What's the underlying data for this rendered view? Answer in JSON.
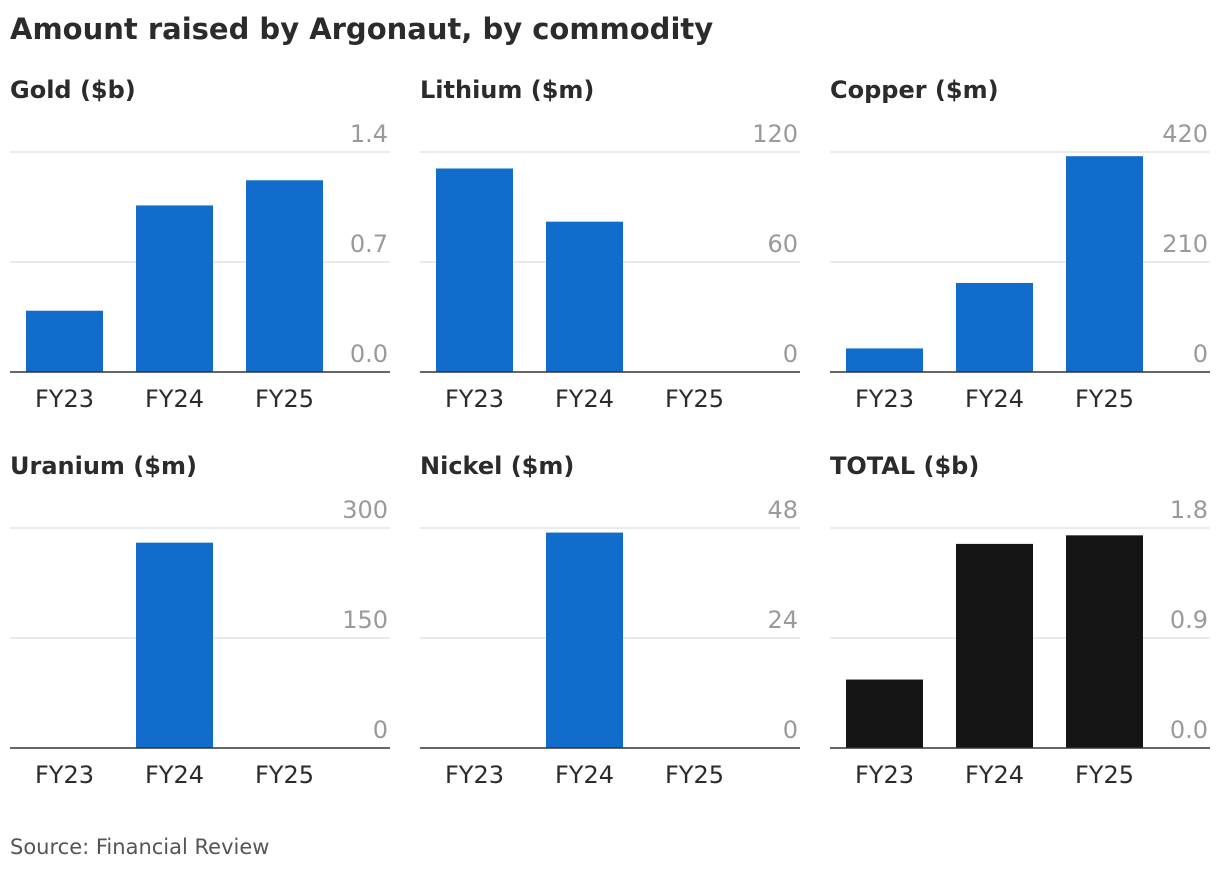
{
  "title": "Amount raised by Argonaut, by commodity",
  "source": "Source: Financial Review",
  "colors": {
    "bar": "#116ccc",
    "total_bar": "#141414",
    "grid": "#dddddd",
    "axis": "#333333",
    "tick_label": "#9a9a9a"
  },
  "chart_data": [
    {
      "type": "bar",
      "title": "Gold ($b)",
      "categories": [
        "FY23",
        "FY24",
        "FY25"
      ],
      "values": [
        0.39,
        1.06,
        1.22
      ],
      "ylim": [
        0,
        1.4
      ],
      "yticks": [
        0,
        0.7,
        1.4
      ],
      "ytick_labels": [
        "0.0",
        "0.7",
        "1.4"
      ],
      "grid": true
    },
    {
      "type": "bar",
      "title": "Lithium ($m)",
      "categories": [
        "FY23",
        "FY24",
        "FY25"
      ],
      "values": [
        111,
        82,
        0
      ],
      "ylim": [
        0,
        120
      ],
      "yticks": [
        0,
        60,
        120
      ],
      "ytick_labels": [
        "0",
        "60",
        "120"
      ],
      "grid": true
    },
    {
      "type": "bar",
      "title": "Copper ($m)",
      "categories": [
        "FY23",
        "FY24",
        "FY25"
      ],
      "values": [
        45,
        170,
        412
      ],
      "ylim": [
        0,
        420
      ],
      "yticks": [
        0,
        210,
        420
      ],
      "ytick_labels": [
        "0",
        "210",
        "420"
      ],
      "grid": true
    },
    {
      "type": "bar",
      "title": "Uranium ($m)",
      "categories": [
        "FY23",
        "FY24",
        "FY25"
      ],
      "values": [
        0,
        280,
        0
      ],
      "ylim": [
        0,
        300
      ],
      "yticks": [
        0,
        150,
        300
      ],
      "ytick_labels": [
        "0",
        "150",
        "300"
      ],
      "grid": true
    },
    {
      "type": "bar",
      "title": "Nickel ($m)",
      "categories": [
        "FY23",
        "FY24",
        "FY25"
      ],
      "values": [
        0,
        47,
        0
      ],
      "ylim": [
        0,
        48
      ],
      "yticks": [
        0,
        24,
        48
      ],
      "ytick_labels": [
        "0",
        "24",
        "48"
      ],
      "grid": true
    },
    {
      "type": "bar",
      "title": "TOTAL ($b)",
      "categories": [
        "FY23",
        "FY24",
        "FY25"
      ],
      "values": [
        0.56,
        1.67,
        1.74
      ],
      "ylim": [
        0,
        1.8
      ],
      "yticks": [
        0,
        0.9,
        1.8
      ],
      "ytick_labels": [
        "0.0",
        "0.9",
        "1.8"
      ],
      "grid": true,
      "color_role": "total_bar"
    }
  ]
}
